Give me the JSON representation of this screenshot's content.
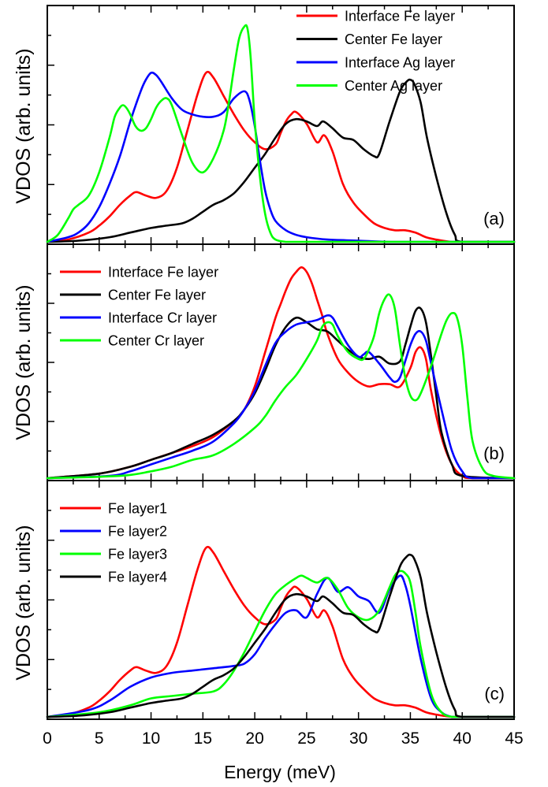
{
  "figure": {
    "xlabel": "Energy (meV)",
    "xlim": [
      0,
      45
    ],
    "xticks": [
      "0",
      "5",
      "10",
      "15",
      "20",
      "25",
      "30",
      "35",
      "40",
      "45"
    ]
  },
  "chart_data": [
    {
      "type": "line",
      "panel_label": "(a)",
      "ylabel": "VDOS  (arb. units)",
      "xlim": [
        0,
        45
      ],
      "ylim": [
        0,
        1
      ],
      "legend_position": "top-right",
      "series": [
        {
          "name": "Interface Fe layer",
          "color": "#ff0000",
          "x": [
            0,
            2,
            4,
            5,
            6,
            7,
            8,
            8.6,
            9.5,
            10.5,
            11.5,
            12.5,
            13.5,
            14.5,
            15.3,
            16,
            17,
            18,
            19,
            20,
            21,
            22,
            22.5,
            23,
            23.5,
            24,
            25,
            26,
            26.7,
            27.5,
            28.5,
            29.5,
            30.5,
            31.5,
            32.5,
            33.5,
            34.5,
            35.5,
            36.5,
            37.5,
            39,
            41,
            45
          ],
          "y": [
            0,
            0.01,
            0.04,
            0.07,
            0.11,
            0.16,
            0.2,
            0.215,
            0.2,
            0.19,
            0.22,
            0.32,
            0.48,
            0.64,
            0.73,
            0.71,
            0.63,
            0.55,
            0.48,
            0.43,
            0.4,
            0.42,
            0.47,
            0.52,
            0.55,
            0.56,
            0.51,
            0.43,
            0.46,
            0.39,
            0.25,
            0.17,
            0.12,
            0.08,
            0.06,
            0.05,
            0.05,
            0.04,
            0.02,
            0.01,
            0,
            0,
            0
          ]
        },
        {
          "name": "Center Fe layer",
          "color": "#000000",
          "x": [
            0,
            3,
            6,
            8,
            10,
            11.5,
            13,
            14,
            15,
            16,
            17,
            18,
            19,
            20,
            21,
            22,
            23,
            24,
            25,
            26,
            26.6,
            27.5,
            28.5,
            29.5,
            30.5,
            31.5,
            32,
            33,
            34,
            34.6,
            35,
            35.4,
            36,
            36.6,
            37.5,
            38.5,
            39.3,
            40,
            45
          ],
          "y": [
            0,
            0.005,
            0.02,
            0.04,
            0.06,
            0.07,
            0.08,
            0.1,
            0.13,
            0.16,
            0.18,
            0.21,
            0.26,
            0.32,
            0.38,
            0.45,
            0.51,
            0.53,
            0.52,
            0.5,
            0.52,
            0.49,
            0.45,
            0.44,
            0.4,
            0.37,
            0.38,
            0.52,
            0.65,
            0.69,
            0.7,
            0.68,
            0.6,
            0.45,
            0.28,
            0.12,
            0.03,
            0,
            0
          ]
        },
        {
          "name": "Interface Ag layer",
          "color": "#0000ff",
          "x": [
            0,
            2,
            3,
            4,
            5,
            6,
            7,
            8,
            9,
            9.5,
            10,
            10.5,
            11,
            12,
            13,
            14,
            15,
            16,
            17,
            18,
            19,
            19.5,
            20,
            20.5,
            21,
            21.5,
            22,
            23,
            24,
            25,
            27,
            30,
            33,
            37,
            45
          ],
          "y": [
            0,
            0.02,
            0.04,
            0.08,
            0.15,
            0.25,
            0.37,
            0.52,
            0.65,
            0.7,
            0.73,
            0.72,
            0.69,
            0.62,
            0.57,
            0.55,
            0.54,
            0.54,
            0.56,
            0.62,
            0.65,
            0.61,
            0.5,
            0.35,
            0.22,
            0.14,
            0.09,
            0.05,
            0.03,
            0.02,
            0.01,
            0.005,
            0,
            0,
            0
          ]
        },
        {
          "name": "Center Ag layer",
          "color": "#00ff00",
          "x": [
            0,
            1,
            2,
            2.5,
            3,
            4,
            5,
            6,
            6.5,
            7,
            7.3,
            7.6,
            8,
            8.5,
            9,
            9.5,
            10,
            10.5,
            11,
            11.5,
            12,
            13,
            14,
            15,
            16,
            17,
            17.5,
            18,
            18.5,
            19,
            19.3,
            19.6,
            20,
            20.5,
            21,
            21.5,
            22,
            23,
            24,
            30,
            45
          ],
          "y": [
            0,
            0.03,
            0.1,
            0.14,
            0.16,
            0.2,
            0.3,
            0.45,
            0.54,
            0.58,
            0.59,
            0.58,
            0.55,
            0.5,
            0.48,
            0.49,
            0.53,
            0.58,
            0.61,
            0.62,
            0.59,
            0.46,
            0.34,
            0.3,
            0.36,
            0.48,
            0.6,
            0.75,
            0.88,
            0.93,
            0.92,
            0.8,
            0.52,
            0.28,
            0.12,
            0.04,
            0.01,
            0,
            0,
            0,
            0
          ]
        }
      ]
    },
    {
      "type": "line",
      "panel_label": "(b)",
      "ylabel": "VDOS  (arb. units)",
      "xlim": [
        0,
        45
      ],
      "ylim": [
        0,
        1
      ],
      "legend_position": "top-left",
      "series": [
        {
          "name": "Interface Fe layer",
          "color": "#ff0000",
          "x": [
            0,
            5,
            8,
            10,
            12,
            14,
            16,
            18,
            19,
            20,
            21,
            22,
            22.5,
            23,
            23.5,
            24,
            24.5,
            25,
            25.5,
            26,
            26.5,
            27,
            28,
            29,
            30,
            31,
            32,
            33,
            34,
            35,
            35.5,
            36,
            36.5,
            37,
            38,
            39,
            40,
            41,
            45
          ],
          "y": [
            0,
            0.02,
            0.05,
            0.08,
            0.11,
            0.14,
            0.18,
            0.25,
            0.3,
            0.4,
            0.55,
            0.7,
            0.76,
            0.82,
            0.87,
            0.9,
            0.92,
            0.9,
            0.85,
            0.78,
            0.71,
            0.63,
            0.52,
            0.46,
            0.42,
            0.4,
            0.41,
            0.41,
            0.4,
            0.48,
            0.55,
            0.57,
            0.52,
            0.38,
            0.18,
            0.06,
            0.01,
            0,
            0
          ]
        },
        {
          "name": "Center Fe layer",
          "color": "#000000",
          "x": [
            0,
            5,
            8,
            10,
            12,
            14,
            16,
            18,
            19,
            20,
            21,
            22,
            23,
            24,
            25,
            26,
            27,
            28,
            29,
            30,
            31,
            32,
            33,
            34,
            34.5,
            35,
            35.5,
            36,
            36.5,
            37,
            37.5,
            38,
            39,
            40,
            45
          ],
          "y": [
            0,
            0.02,
            0.05,
            0.08,
            0.11,
            0.15,
            0.19,
            0.25,
            0.3,
            0.37,
            0.47,
            0.58,
            0.66,
            0.7,
            0.68,
            0.65,
            0.64,
            0.6,
            0.56,
            0.53,
            0.52,
            0.53,
            0.5,
            0.51,
            0.58,
            0.66,
            0.73,
            0.74,
            0.68,
            0.53,
            0.36,
            0.2,
            0.06,
            0.01,
            0
          ]
        },
        {
          "name": "Interface Cr layer",
          "color": "#0000ff",
          "x": [
            0,
            6,
            8,
            10,
            12,
            14,
            16,
            18,
            19,
            20,
            21,
            22,
            23,
            24,
            25,
            26,
            27,
            27.5,
            28,
            29,
            30,
            30.5,
            31,
            32,
            33,
            33.5,
            34,
            34.5,
            35,
            35.5,
            36,
            36.5,
            37,
            38,
            39,
            40,
            41,
            45
          ],
          "y": [
            0,
            0.01,
            0.03,
            0.06,
            0.09,
            0.12,
            0.16,
            0.24,
            0.3,
            0.38,
            0.49,
            0.59,
            0.64,
            0.67,
            0.68,
            0.69,
            0.71,
            0.7,
            0.66,
            0.58,
            0.53,
            0.54,
            0.55,
            0.5,
            0.44,
            0.42,
            0.44,
            0.51,
            0.58,
            0.63,
            0.64,
            0.6,
            0.5,
            0.3,
            0.12,
            0.03,
            0,
            0
          ]
        },
        {
          "name": "Center Cr layer",
          "color": "#00ff00",
          "x": [
            0,
            7,
            10,
            12,
            14,
            16,
            18,
            20,
            21,
            22,
            23,
            24,
            25,
            26,
            26.5,
            27,
            27.5,
            28,
            29,
            30,
            30.5,
            31,
            31.5,
            32,
            32.5,
            33,
            33.5,
            34,
            34.5,
            35,
            35.5,
            36,
            37,
            38,
            38.5,
            39,
            39.5,
            40,
            40.5,
            41,
            42,
            43,
            45
          ],
          "y": [
            0,
            0.01,
            0.03,
            0.05,
            0.08,
            0.1,
            0.15,
            0.22,
            0.27,
            0.34,
            0.4,
            0.45,
            0.52,
            0.6,
            0.66,
            0.68,
            0.67,
            0.62,
            0.55,
            0.52,
            0.52,
            0.56,
            0.62,
            0.72,
            0.78,
            0.8,
            0.74,
            0.58,
            0.44,
            0.36,
            0.34,
            0.37,
            0.49,
            0.63,
            0.69,
            0.72,
            0.7,
            0.58,
            0.35,
            0.16,
            0.04,
            0.01,
            0
          ]
        }
      ]
    },
    {
      "type": "line",
      "panel_label": "(c)",
      "ylabel": "VDOS  (arb. units)",
      "xlim": [
        0,
        45
      ],
      "ylim": [
        0,
        1
      ],
      "legend_position": "top-left",
      "series": [
        {
          "name": "Fe layer1",
          "color": "#ff0000",
          "x": [
            0,
            2,
            4,
            5,
            6,
            7,
            8,
            8.6,
            9.5,
            10.5,
            11.5,
            12.5,
            13.5,
            14.5,
            15.3,
            16,
            17,
            18,
            19,
            20,
            21,
            22,
            22.5,
            23,
            23.5,
            24,
            25,
            26,
            26.7,
            27.5,
            28.5,
            29.5,
            30.5,
            31.5,
            32.5,
            33.5,
            34.5,
            35.5,
            36.5,
            37.5,
            39,
            41,
            45
          ],
          "y": [
            0,
            0.01,
            0.04,
            0.07,
            0.11,
            0.16,
            0.2,
            0.215,
            0.2,
            0.19,
            0.22,
            0.32,
            0.48,
            0.64,
            0.73,
            0.71,
            0.63,
            0.55,
            0.48,
            0.43,
            0.4,
            0.42,
            0.47,
            0.52,
            0.55,
            0.56,
            0.51,
            0.43,
            0.46,
            0.39,
            0.25,
            0.17,
            0.12,
            0.08,
            0.06,
            0.05,
            0.05,
            0.04,
            0.02,
            0.01,
            0,
            0,
            0
          ]
        },
        {
          "name": "Fe layer2",
          "color": "#0000ff",
          "x": [
            0,
            4,
            6,
            8,
            10,
            12,
            14,
            16,
            18,
            19,
            20,
            21,
            22,
            23,
            24,
            25,
            26,
            27,
            28,
            29,
            30,
            31,
            32,
            33,
            34,
            34.5,
            35,
            36,
            37,
            38,
            39,
            40,
            45
          ],
          "y": [
            0,
            0.03,
            0.07,
            0.13,
            0.17,
            0.19,
            0.2,
            0.21,
            0.22,
            0.23,
            0.27,
            0.34,
            0.4,
            0.45,
            0.46,
            0.43,
            0.53,
            0.6,
            0.54,
            0.56,
            0.52,
            0.5,
            0.45,
            0.55,
            0.61,
            0.57,
            0.48,
            0.25,
            0.08,
            0.02,
            0,
            0,
            0
          ]
        },
        {
          "name": "Fe layer3",
          "color": "#00ff00",
          "x": [
            0,
            5,
            8,
            10,
            12,
            14,
            16,
            17,
            18,
            19,
            20,
            21,
            22,
            23,
            24,
            24.5,
            25,
            26,
            27,
            28,
            29,
            30,
            31,
            32,
            33,
            33.5,
            34,
            34.5,
            35,
            35.5,
            36,
            37,
            38,
            39,
            40,
            45
          ],
          "y": [
            0,
            0.02,
            0.05,
            0.08,
            0.09,
            0.1,
            0.11,
            0.14,
            0.2,
            0.28,
            0.37,
            0.46,
            0.53,
            0.57,
            0.6,
            0.61,
            0.6,
            0.58,
            0.6,
            0.55,
            0.47,
            0.43,
            0.42,
            0.46,
            0.56,
            0.61,
            0.63,
            0.62,
            0.58,
            0.45,
            0.3,
            0.1,
            0.02,
            0,
            0,
            0
          ]
        },
        {
          "name": "Fe layer4",
          "color": "#000000",
          "x": [
            0,
            3,
            6,
            8,
            10,
            11.5,
            13,
            14,
            15,
            16,
            17,
            18,
            19,
            20,
            21,
            22,
            23,
            24,
            25,
            26,
            26.6,
            27.5,
            28.5,
            29.5,
            30.5,
            31.5,
            32,
            33,
            34,
            34.6,
            35,
            35.4,
            36,
            36.6,
            37.5,
            38.5,
            39.3,
            40,
            45
          ],
          "y": [
            0,
            0.005,
            0.02,
            0.04,
            0.06,
            0.07,
            0.08,
            0.1,
            0.13,
            0.16,
            0.18,
            0.21,
            0.26,
            0.32,
            0.38,
            0.45,
            0.51,
            0.53,
            0.52,
            0.5,
            0.52,
            0.49,
            0.45,
            0.44,
            0.4,
            0.37,
            0.38,
            0.52,
            0.65,
            0.69,
            0.7,
            0.68,
            0.6,
            0.45,
            0.28,
            0.12,
            0.03,
            0,
            0
          ]
        }
      ]
    }
  ]
}
